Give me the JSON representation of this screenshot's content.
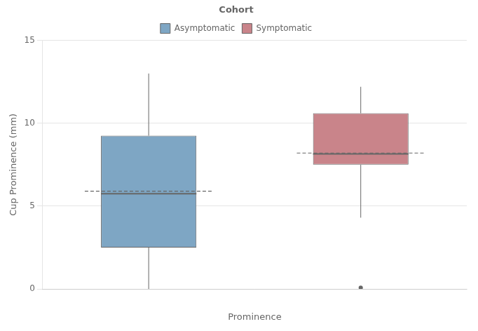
{
  "chart_data": {
    "type": "box",
    "xlabel": "Prominence",
    "ylabel": "Cup Prominence (mm)",
    "legend_title": "Cohort",
    "legend": "top",
    "grid": "y",
    "categories": [
      null,
      null
    ],
    "ylim": [
      0,
      15
    ],
    "yticks": [
      0,
      5,
      10,
      15
    ],
    "series": [
      {
        "name": "Asymptomatic",
        "color": "#7EA6C4",
        "q1": 2.5,
        "median": 5.75,
        "q3": 9.25,
        "mean": 5.9,
        "whisker_low": 0.0,
        "whisker_high": 13.0,
        "outliers": []
      },
      {
        "name": "Symptomatic",
        "color": "#C9848A",
        "q1": 7.5,
        "median": 8.15,
        "q3": 10.6,
        "mean": 8.2,
        "whisker_low": 4.3,
        "whisker_high": 12.2,
        "outliers": [
          0.07
        ]
      }
    ]
  }
}
